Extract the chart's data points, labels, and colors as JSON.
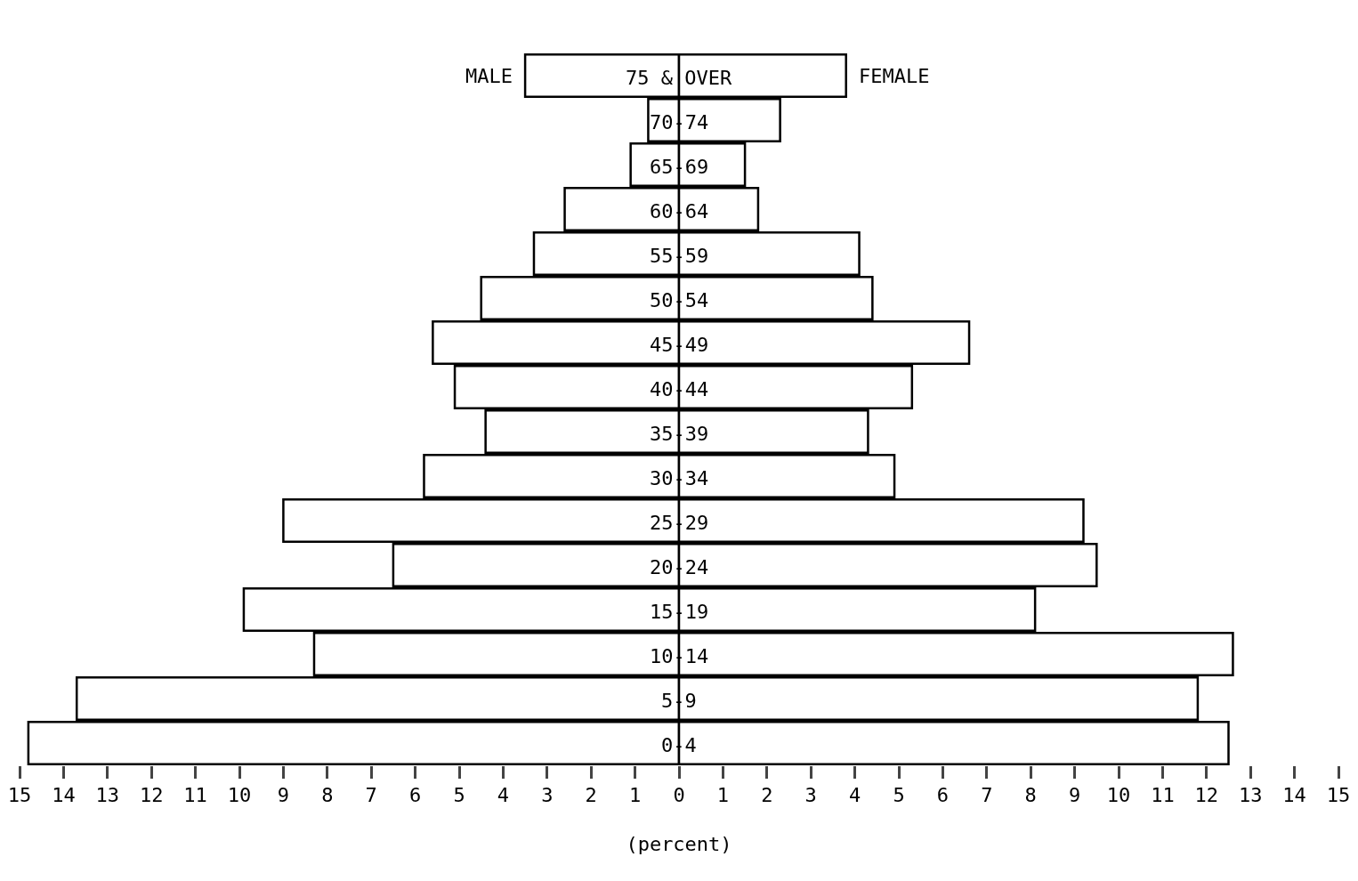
{
  "chart_data": {
    "type": "bar",
    "orientation": "horizontal",
    "stacked": true,
    "xlabel": "(percent)",
    "categories": [
      "75 & OVER",
      "70-74",
      "65-69",
      "60-64",
      "55-59",
      "50-54",
      "45-49",
      "40-44",
      "35-39",
      "30-34",
      "25-29",
      "20-24",
      "15-19",
      "10-14",
      "5-9",
      "0-4"
    ],
    "series": [
      {
        "name": "MALE",
        "color": "#ffffff",
        "values": [
          -3.5,
          -0.7,
          -1.1,
          -2.6,
          -3.3,
          -4.5,
          -5.6,
          -5.1,
          -4.4,
          -5.8,
          -9.0,
          -6.5,
          -9.9,
          -8.3,
          -13.7,
          -14.8
        ]
      },
      {
        "name": "FEMALE",
        "color": "#ffffff",
        "values": [
          3.8,
          2.3,
          1.5,
          1.8,
          4.1,
          4.4,
          6.6,
          5.3,
          4.3,
          4.9,
          9.2,
          9.5,
          8.1,
          12.6,
          11.8,
          12.5
        ]
      }
    ],
    "xlim": [
      -15,
      15
    ],
    "xticks": [
      {
        "value": -15,
        "label": "15"
      },
      {
        "value": -14,
        "label": "14"
      },
      {
        "value": -13,
        "label": "13"
      },
      {
        "value": -12,
        "label": "12"
      },
      {
        "value": -11,
        "label": "11"
      },
      {
        "value": -10,
        "label": "10"
      },
      {
        "value": -9,
        "label": "9"
      },
      {
        "value": -8,
        "label": "8"
      },
      {
        "value": -7,
        "label": "7"
      },
      {
        "value": -6,
        "label": "6"
      },
      {
        "value": -5,
        "label": "5"
      },
      {
        "value": -4,
        "label": "4"
      },
      {
        "value": -3,
        "label": "3"
      },
      {
        "value": -2,
        "label": "2"
      },
      {
        "value": -1,
        "label": "1"
      },
      0,
      1,
      2,
      3,
      4,
      5,
      6,
      7,
      8,
      9,
      10,
      11,
      12,
      13,
      14,
      15
    ],
    "grid": false,
    "legend": false
  }
}
